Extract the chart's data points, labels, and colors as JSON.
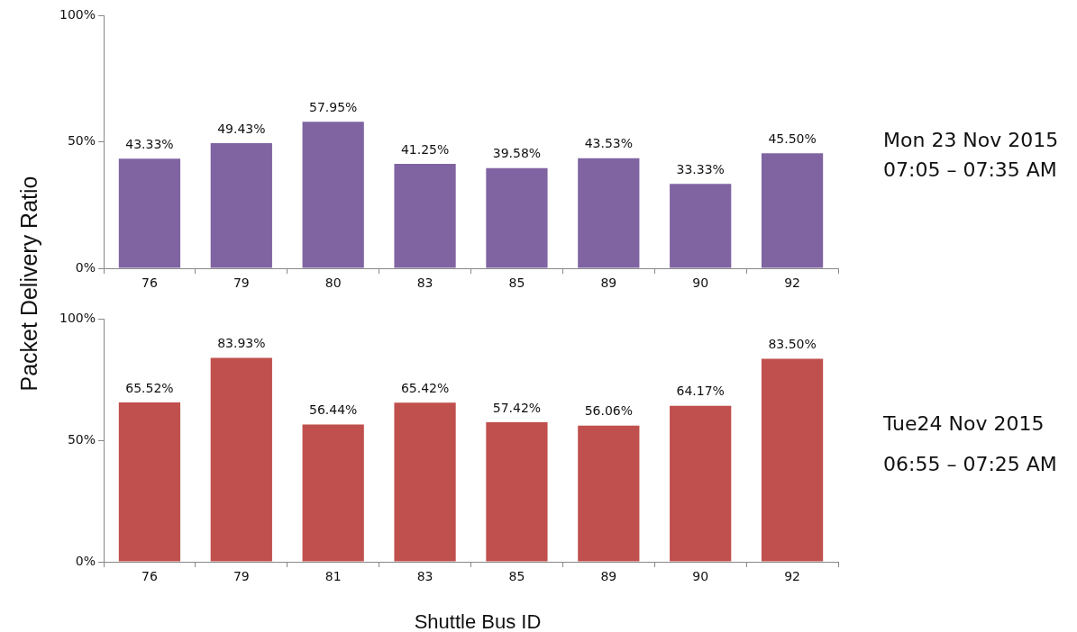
{
  "chart_data": [
    {
      "type": "bar",
      "ylabel": "Packet Delivery Ratio",
      "categories": [
        "76",
        "79",
        "80",
        "83",
        "85",
        "89",
        "90",
        "92"
      ],
      "series": [
        {
          "color": "#8064a2",
          "values": [
            43.33,
            49.43,
            57.95,
            41.25,
            39.58,
            43.53,
            33.33,
            45.5
          ],
          "value_labels": [
            "43.33%",
            "49.43%",
            "57.95%",
            "41.25%",
            "39.58%",
            "43.53%",
            "33.33%",
            "45.50%"
          ]
        }
      ],
      "ylim": [
        0,
        100
      ],
      "yticks": [
        {
          "value": 0,
          "label": "0%"
        },
        {
          "value": 50,
          "label": "50%"
        },
        {
          "value": 100,
          "label": "100%"
        }
      ],
      "grid": false,
      "legend": false,
      "annotations": [
        "Mon 23 Nov 2015",
        "07:05 – 07:35 AM"
      ]
    },
    {
      "type": "bar",
      "xlabel": "Shuttle Bus ID",
      "categories": [
        "76",
        "79",
        "81",
        "83",
        "85",
        "89",
        "90",
        "92"
      ],
      "series": [
        {
          "color": "#c0504d",
          "values": [
            65.52,
            83.93,
            56.44,
            65.42,
            57.42,
            56.06,
            64.17,
            83.5
          ],
          "value_labels": [
            "65.52%",
            "83.93%",
            "56.44%",
            "65.42%",
            "57.42%",
            "56.06%",
            "64.17%",
            "83.50%"
          ]
        }
      ],
      "ylim": [
        0,
        100
      ],
      "yticks": [
        {
          "value": 0,
          "label": "0%"
        },
        {
          "value": 50,
          "label": "50%"
        },
        {
          "value": 100,
          "label": "100%"
        }
      ],
      "grid": false,
      "legend": false,
      "annotations": [
        "Tue24 Nov 2015",
        "06:55 – 07:25 AM"
      ]
    }
  ]
}
